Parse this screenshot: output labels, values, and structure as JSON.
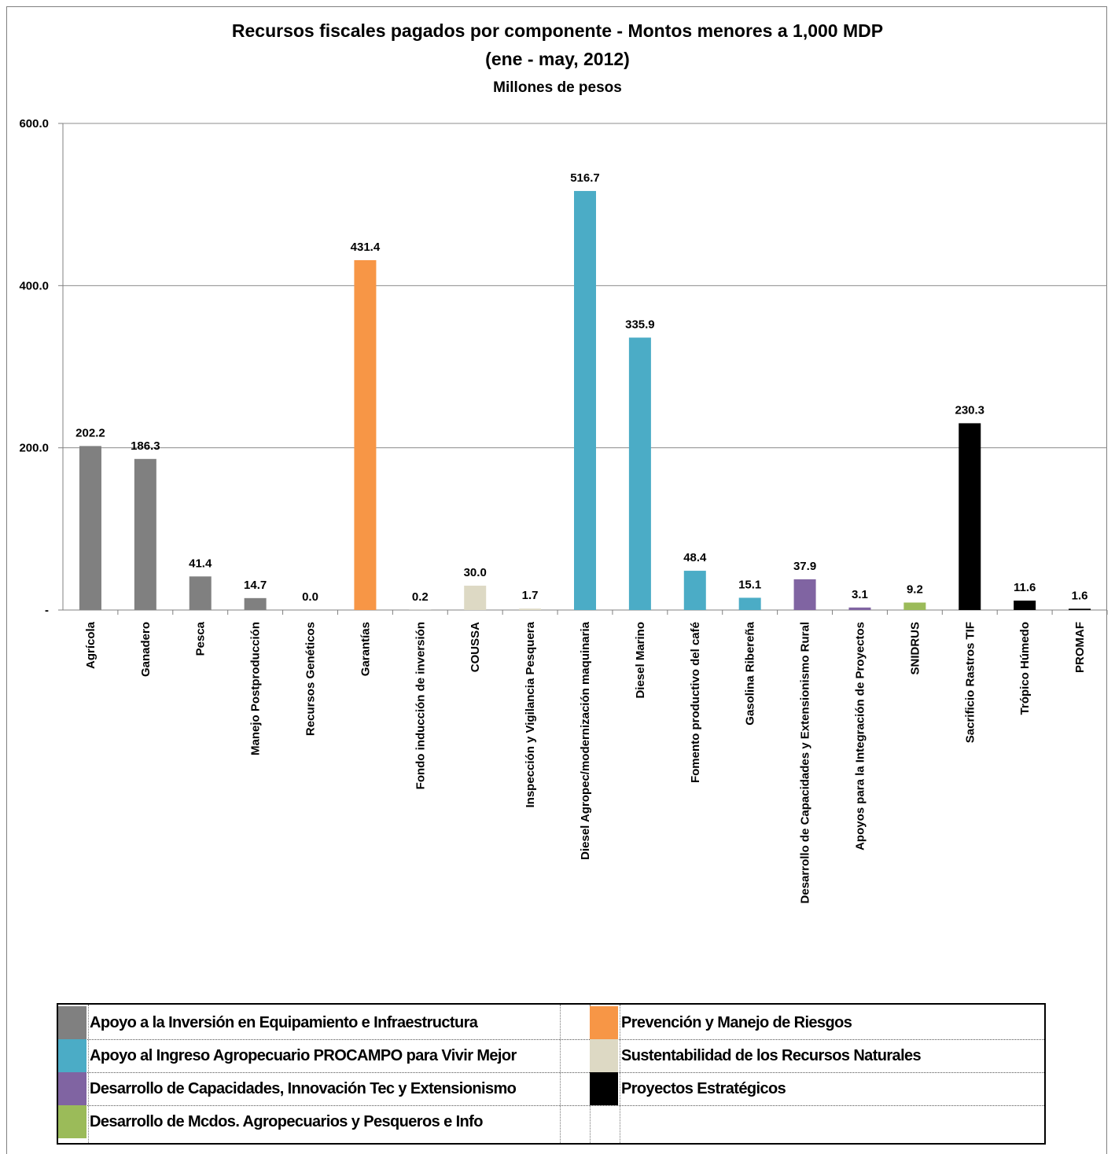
{
  "chart_data": {
    "type": "bar",
    "title": "Recursos fiscales pagados por componente - Montos menores a 1,000 MDP",
    "subtitle": "(ene - may, 2012)",
    "ylabel": "Millones de pesos",
    "ylim": [
      0,
      600
    ],
    "yticks": [
      "-",
      "200.0",
      "400.0",
      "600.0"
    ],
    "grid": true,
    "categories": [
      "Agrícola",
      "Ganadero",
      "Pesca",
      "Manejo Postproducción",
      "Recursos Genéticos",
      "Garantías",
      "Fondo inducción de inversión",
      "COUSSA",
      "Inspección y Vigilancia Pesquera",
      "Diesel Agropec/modernización maquinaria",
      "Diesel Marino",
      "Fomento productivo del café",
      "Gasolina Ribereña",
      "Desarrollo de Capacidades y Extensionismo Rural",
      "Apoyos para la Integración de Proyectos",
      "SNIDRUS",
      "Sacrificio Rastros TIF",
      "Trópico Húmedo",
      "PROMAF"
    ],
    "values": [
      202.2,
      186.3,
      41.4,
      14.7,
      0.0,
      431.4,
      0.2,
      30.0,
      1.7,
      516.7,
      335.9,
      48.4,
      15.1,
      37.9,
      3.1,
      9.2,
      230.3,
      11.6,
      1.6
    ],
    "value_labels": [
      "202.2",
      "186.3",
      "41.4",
      "14.7",
      "0.0",
      "431.4",
      "0.2",
      "30.0",
      "1.7",
      "516.7",
      "335.9",
      "48.4",
      "15.1",
      "37.9",
      "3.1",
      "9.2",
      "230.3",
      "11.6",
      "1.6"
    ],
    "bar_groups": [
      0,
      0,
      0,
      0,
      0,
      1,
      3,
      3,
      3,
      2,
      2,
      2,
      2,
      4,
      4,
      6,
      5,
      5,
      5
    ],
    "legend_placement": "bottom",
    "legend": [
      {
        "label": "Apoyo a la Inversión en Equipamiento e Infraestructura",
        "color": "#808080"
      },
      {
        "label": "Prevención y Manejo de Riesgos",
        "color": "#F79646"
      },
      {
        "label": "Apoyo al Ingreso Agropecuario PROCAMPO para Vivir Mejor",
        "color": "#4BACC6"
      },
      {
        "label": "Sustentabilidad de los Recursos Naturales",
        "color": "#DDD9C4"
      },
      {
        "label": "Desarrollo de Capacidades, Innovación Tec y Extensionismo",
        "color": "#8064A2"
      },
      {
        "label": "Proyectos Estratégicos",
        "color": "#000000"
      },
      {
        "label": "Desarrollo de Mcdos. Agropecuarios y Pesqueros e Info",
        "color": "#9BBB59"
      }
    ]
  }
}
